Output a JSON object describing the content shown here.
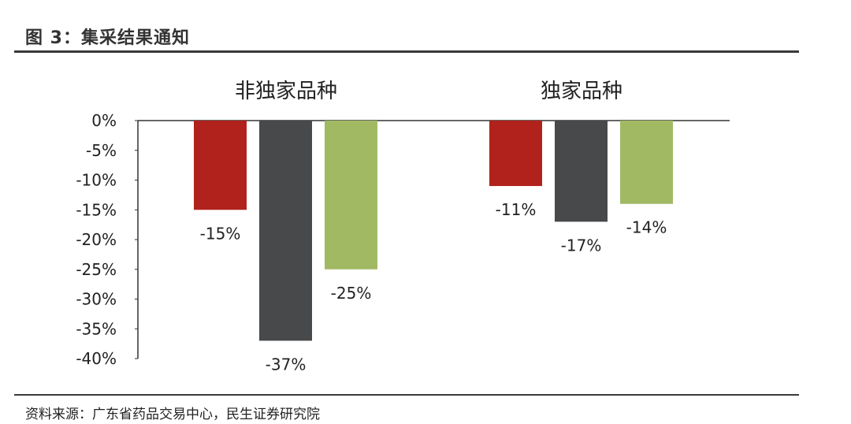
{
  "figure": {
    "title": "图 3：集采结果通知",
    "source": "资料来源：广东省药品交易中心，民生证券研究院"
  },
  "chart_data": {
    "type": "bar",
    "categories": [
      "非独家品种",
      "独家品种"
    ],
    "series": [
      {
        "values": [
          -15,
          -11
        ],
        "labels": [
          "-15%",
          "-11%"
        ],
        "color": "#b1221c"
      },
      {
        "values": [
          -37,
          -17
        ],
        "labels": [
          "-37%",
          "-17%"
        ],
        "color": "#48494b"
      },
      {
        "values": [
          -25,
          -14
        ],
        "labels": [
          "-25%",
          "-14%"
        ],
        "color": "#a2b964"
      }
    ],
    "ylim": [
      -40,
      0
    ],
    "yticks": [
      0,
      -5,
      -10,
      -15,
      -20,
      -25,
      -30,
      -35,
      -40
    ],
    "ytick_labels": [
      "0%",
      "-5%",
      "-10%",
      "-15%",
      "-20%",
      "-25%",
      "-30%",
      "-35%",
      "-40%"
    ],
    "category_labels_position": "top",
    "grid": false,
    "legend": "none"
  }
}
